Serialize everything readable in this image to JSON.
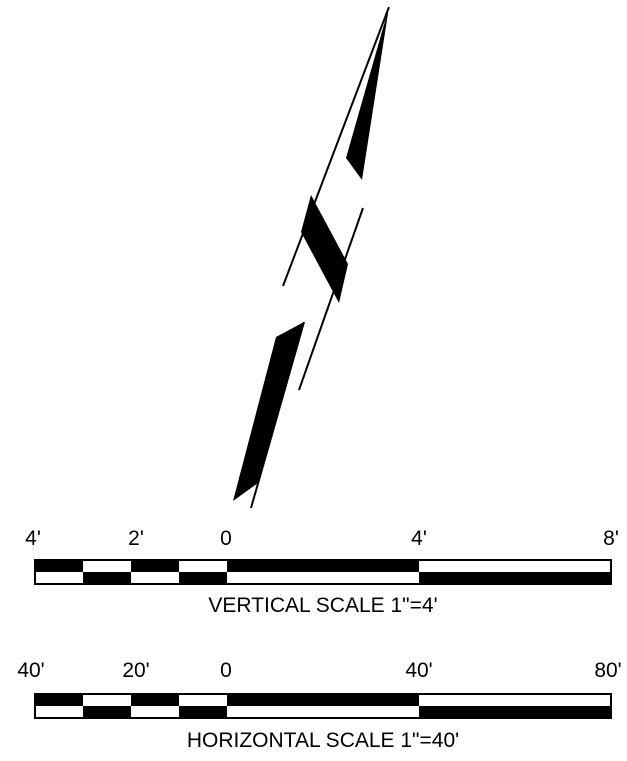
{
  "vertical_scale": {
    "tick_labels": [
      "4'",
      "2'",
      "0",
      "4'",
      "8'"
    ],
    "title": "VERTICAL SCALE 1\"=4'"
  },
  "horizontal_scale": {
    "tick_labels": [
      "40'",
      "20'",
      "0",
      "40'",
      "80'"
    ],
    "title": "HORIZONTAL SCALE 1\"=40'"
  },
  "colors": {
    "ink": "#000000",
    "paper": "#ffffff"
  }
}
